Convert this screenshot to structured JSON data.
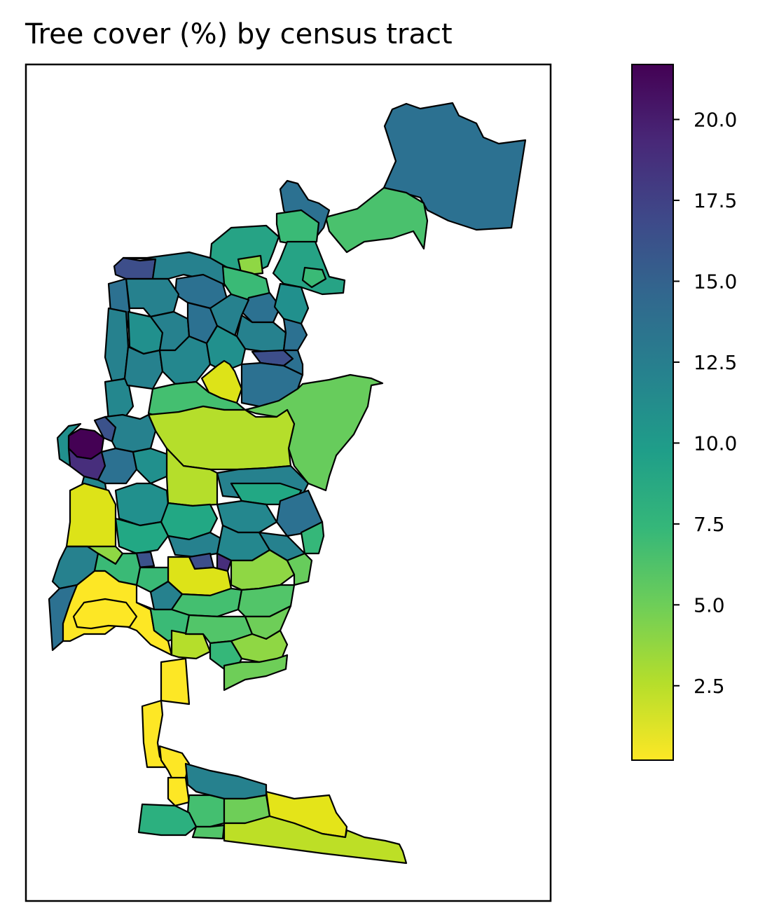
{
  "title": "Tree cover (%) by census tract",
  "colorbar": {
    "colormap": "viridis_r",
    "min": 0.2,
    "max": 21.7,
    "ticks": [
      2.5,
      5.0,
      7.5,
      10.0,
      12.5,
      15.0,
      17.5,
      20.0
    ],
    "tick_labels": [
      "2.5",
      "5.0",
      "7.5",
      "10.0",
      "12.5",
      "15.0",
      "17.5",
      "20.0"
    ]
  },
  "chart_data": {
    "type": "choropleth",
    "title": "Tree cover (%) by census tract",
    "value_label": "Tree cover (%)",
    "value_range": [
      0.2,
      21.7
    ],
    "frame": "axes box without ticks",
    "notes": "Census-tract choropleth of a coastal city; higher tree cover (dark purple/blue) in northern and western hills, lowest (yellow) near downtown bay and southern strip."
  },
  "colors": {
    "outline": "#000000",
    "viridis_stops": [
      "#fde725",
      "#b5de2b",
      "#6ece58",
      "#35b779",
      "#1f9e89",
      "#26828e",
      "#31688e",
      "#3e4989",
      "#482878",
      "#440154"
    ]
  }
}
